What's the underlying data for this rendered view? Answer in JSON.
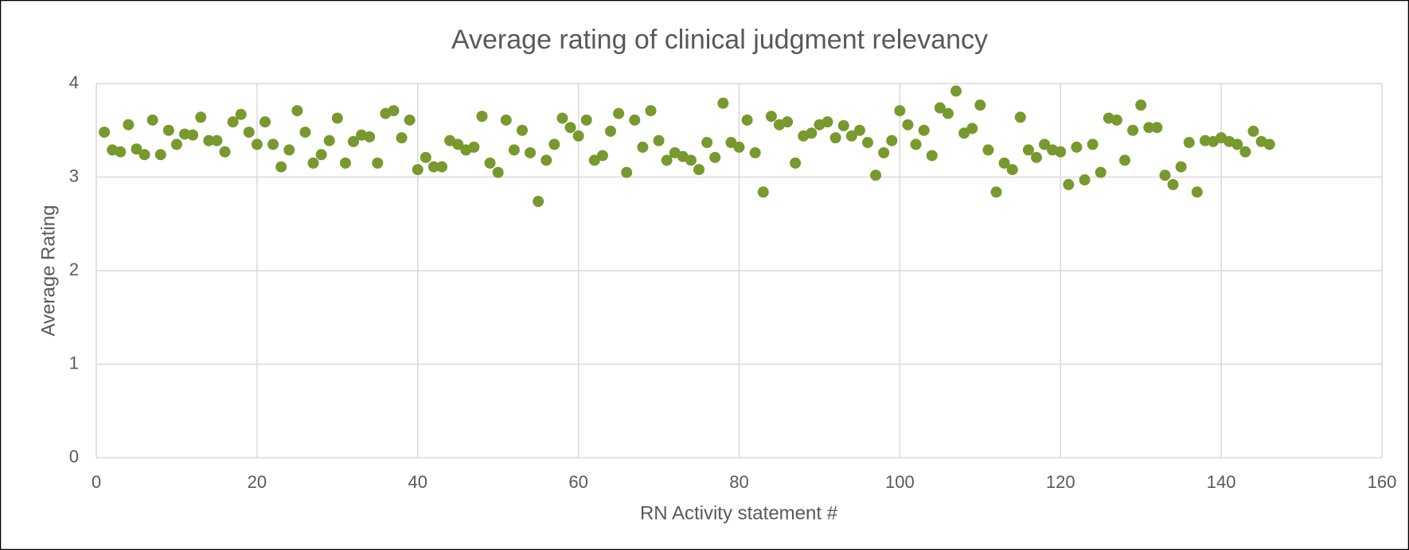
{
  "chart_data": {
    "type": "scatter",
    "title": "Average rating of clinical judgment relevancy",
    "xlabel": "RN Activity statement #",
    "ylabel": "Average Rating",
    "color": "#77992e",
    "grid": true,
    "xlim": [
      0,
      160
    ],
    "xticks": [
      0,
      20,
      40,
      60,
      80,
      100,
      120,
      140,
      160
    ],
    "ylim": [
      0,
      4
    ],
    "yticks": [
      0,
      1,
      2,
      3,
      4
    ],
    "x": [
      1,
      2,
      3,
      4,
      5,
      6,
      7,
      8,
      9,
      10,
      11,
      12,
      13,
      14,
      15,
      16,
      17,
      18,
      19,
      20,
      21,
      22,
      23,
      24,
      25,
      26,
      27,
      28,
      29,
      30,
      31,
      32,
      33,
      34,
      35,
      36,
      37,
      38,
      39,
      40,
      41,
      42,
      43,
      44,
      45,
      46,
      47,
      48,
      49,
      50,
      51,
      52,
      53,
      54,
      55,
      56,
      57,
      58,
      59,
      60,
      61,
      62,
      63,
      64,
      65,
      66,
      67,
      68,
      69,
      70,
      71,
      72,
      73,
      74,
      75,
      76,
      77,
      78,
      79,
      80,
      81,
      82,
      83,
      84,
      85,
      86,
      87,
      88,
      89,
      90,
      91,
      92,
      93,
      94,
      95,
      96,
      97,
      98,
      99,
      100,
      101,
      102,
      103,
      104,
      105,
      106,
      107,
      108,
      109,
      110,
      111,
      112,
      113,
      114,
      115,
      116,
      117,
      118,
      119,
      120,
      121,
      122,
      123,
      124,
      125,
      126,
      127,
      128,
      129,
      130,
      131,
      132,
      133,
      134,
      135,
      136,
      137,
      138,
      139,
      140,
      141,
      142,
      143,
      144,
      145,
      146
    ],
    "values": [
      3.48,
      3.29,
      3.27,
      3.56,
      3.3,
      3.24,
      3.61,
      3.24,
      3.5,
      3.35,
      3.46,
      3.45,
      3.64,
      3.39,
      3.39,
      3.27,
      3.59,
      3.67,
      3.48,
      3.35,
      3.59,
      3.35,
      3.11,
      3.29,
      3.71,
      3.48,
      3.15,
      3.24,
      3.39,
      3.63,
      3.15,
      3.38,
      3.45,
      3.43,
      3.15,
      3.68,
      3.71,
      3.42,
      3.61,
      3.08,
      3.21,
      3.11,
      3.11,
      3.39,
      3.35,
      3.29,
      3.32,
      3.65,
      3.15,
      3.05,
      3.61,
      3.29,
      3.5,
      3.26,
      2.74,
      3.18,
      3.35,
      3.63,
      3.53,
      3.44,
      3.61,
      3.18,
      3.23,
      3.49,
      3.68,
      3.05,
      3.61,
      3.32,
      3.71,
      3.39,
      3.18,
      3.26,
      3.22,
      3.18,
      3.08,
      3.37,
      3.21,
      3.79,
      3.37,
      3.32,
      3.61,
      3.26,
      2.84,
      3.65,
      3.56,
      3.59,
      3.15,
      3.44,
      3.47,
      3.56,
      3.59,
      3.42,
      3.55,
      3.44,
      3.5,
      3.37,
      3.02,
      3.26,
      3.39,
      3.71,
      3.56,
      3.35,
      3.5,
      3.23,
      3.74,
      3.68,
      3.92,
      3.47,
      3.52,
      3.77,
      3.29,
      2.84,
      3.15,
      3.08,
      3.64,
      3.29,
      3.21,
      3.35,
      3.29,
      3.27,
      2.92,
      3.32,
      2.97,
      3.35,
      3.05,
      3.63,
      3.61,
      3.18,
      3.5,
      3.77,
      3.53,
      3.53,
      3.02,
      2.92,
      3.11,
      3.37,
      2.84,
      3.39,
      3.38,
      3.42,
      3.38,
      3.35,
      3.27,
      3.49,
      3.38,
      3.35
    ]
  }
}
